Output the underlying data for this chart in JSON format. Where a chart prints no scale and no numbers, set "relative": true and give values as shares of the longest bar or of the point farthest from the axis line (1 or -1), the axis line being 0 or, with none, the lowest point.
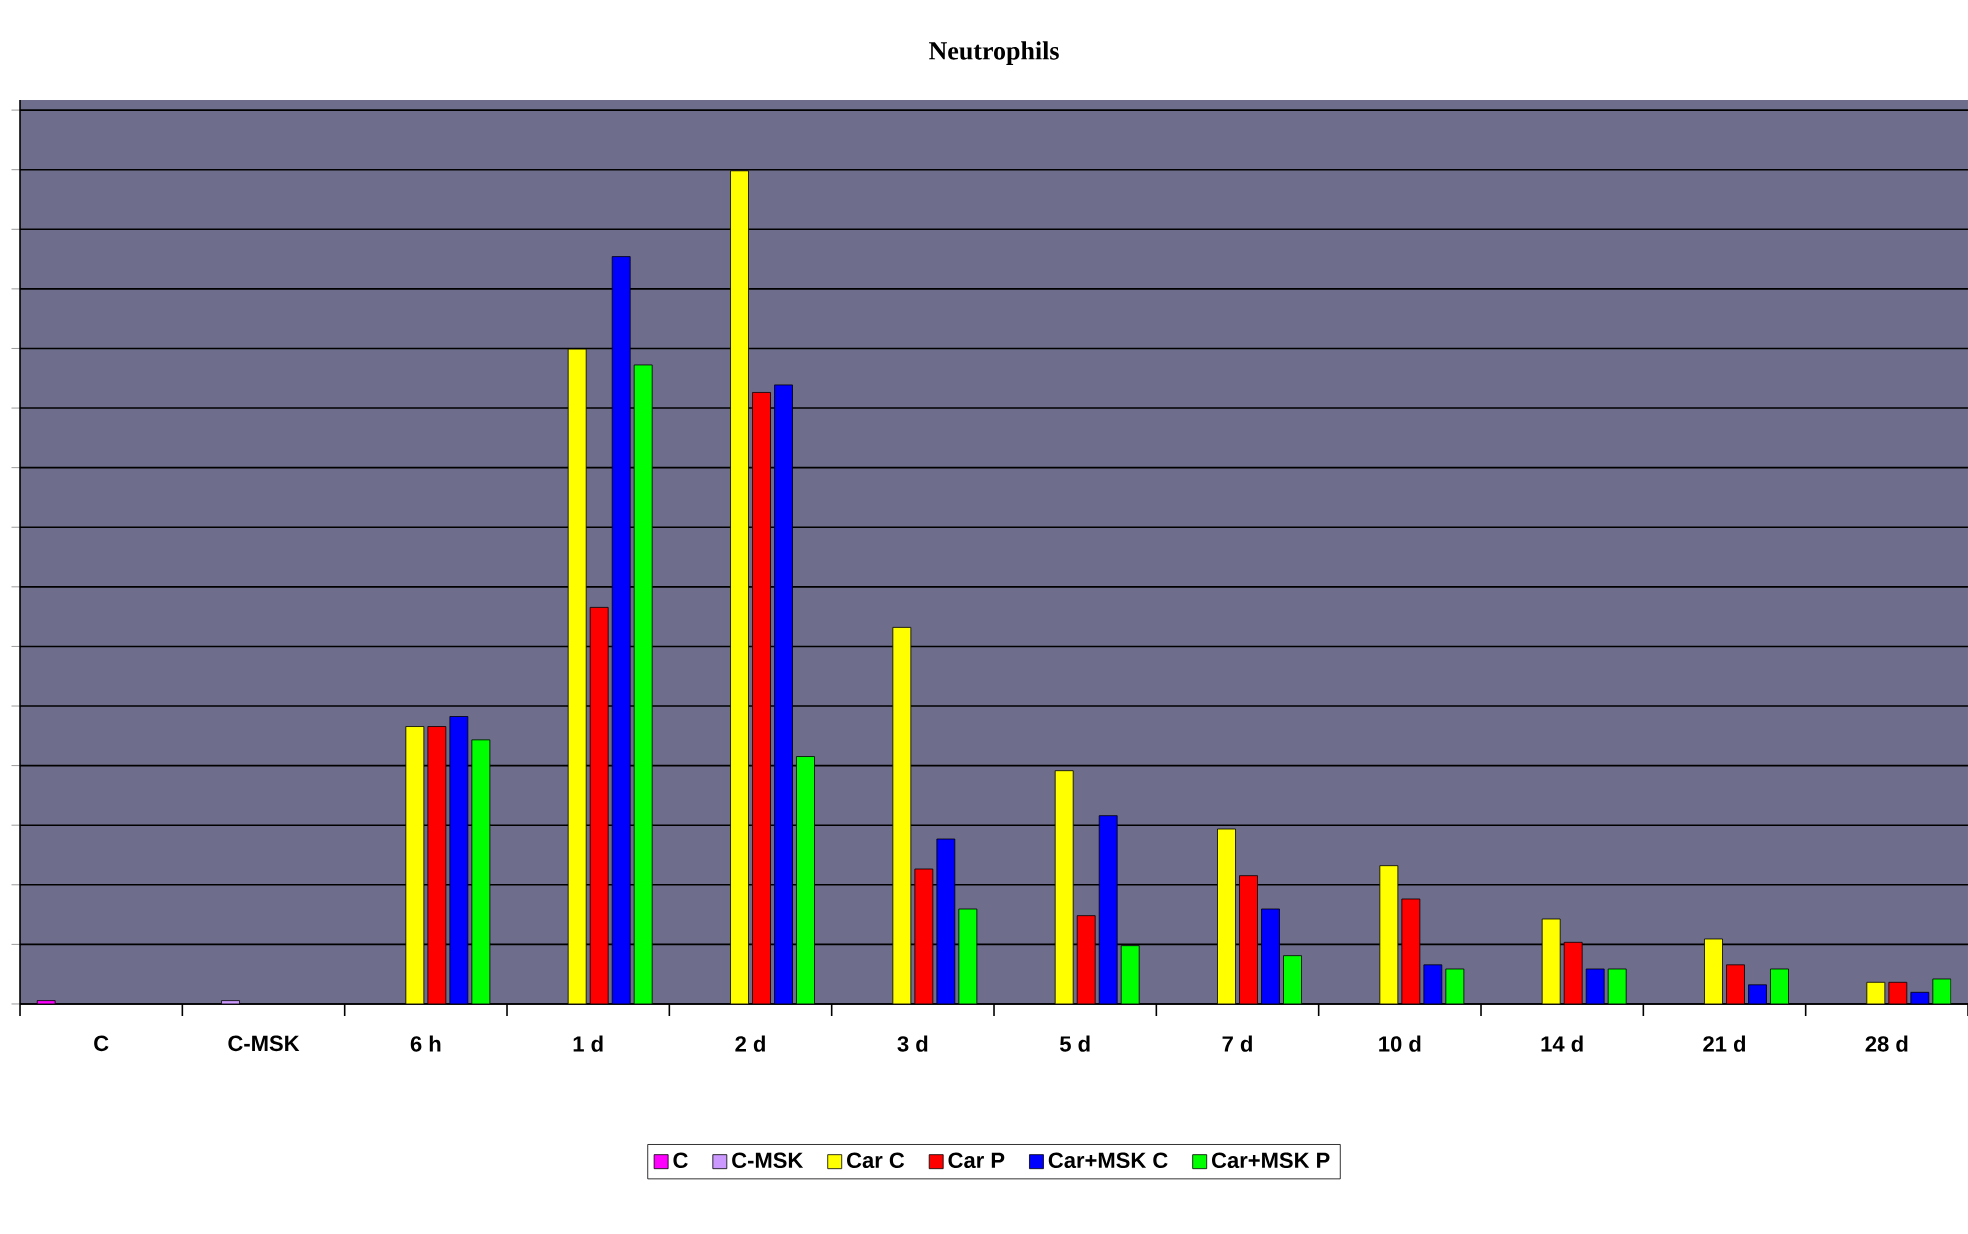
{
  "chart_data": {
    "type": "bar",
    "title": "Neutrophils",
    "relative": true,
    "grid": "y",
    "legend": "bottom",
    "categories": [
      "C",
      "C-MSK",
      "6 h",
      "1 d",
      "2 d",
      "3 d",
      "5 d",
      "7 d",
      "10 d",
      "14 d",
      "21 d",
      "28 d"
    ],
    "series": [
      {
        "name": "C",
        "color": "#ff00ff",
        "values": [
          0.004,
          null,
          null,
          null,
          null,
          null,
          null,
          null,
          null,
          null,
          null,
          null
        ]
      },
      {
        "name": "C-MSK",
        "color": "#cc99ff",
        "values": [
          null,
          0.004,
          null,
          null,
          null,
          null,
          null,
          null,
          null,
          null,
          null,
          null
        ]
      },
      {
        "name": "Car C",
        "color": "#ffff00",
        "values": [
          null,
          null,
          0.333,
          0.786,
          1,
          0.452,
          0.28,
          0.21,
          0.166,
          0.102,
          0.078,
          0.026
        ]
      },
      {
        "name": "Car P",
        "color": "#ff0000",
        "values": [
          null,
          null,
          0.333,
          0.476,
          0.734,
          0.162,
          0.106,
          0.154,
          0.126,
          0.074,
          0.047,
          0.026
        ]
      },
      {
        "name": "Car+MSK C",
        "color": "#0000ff",
        "values": [
          null,
          null,
          0.345,
          0.897,
          0.743,
          0.198,
          0.226,
          0.114,
          0.047,
          0.042,
          0.023,
          0.014
        ]
      },
      {
        "name": "Car+MSK P",
        "color": "#00ff00",
        "values": [
          null,
          null,
          0.317,
          0.767,
          0.297,
          0.114,
          0.07,
          0.058,
          0.042,
          0.042,
          0.042,
          0.03
        ]
      }
    ]
  }
}
